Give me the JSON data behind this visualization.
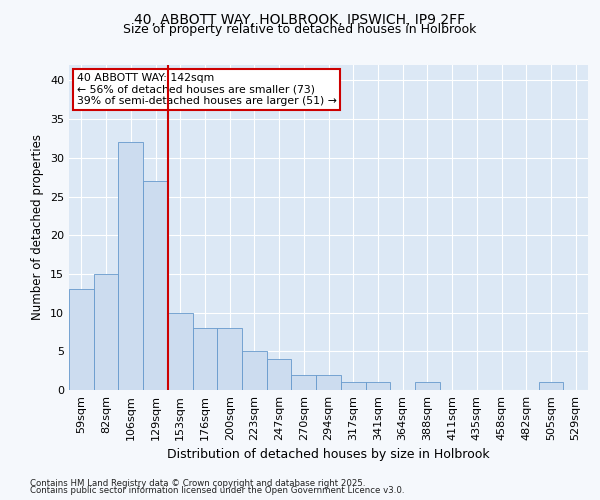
{
  "title1": "40, ABBOTT WAY, HOLBROOK, IPSWICH, IP9 2FF",
  "title2": "Size of property relative to detached houses in Holbrook",
  "xlabel": "Distribution of detached houses by size in Holbrook",
  "ylabel": "Number of detached properties",
  "categories": [
    "59sqm",
    "82sqm",
    "106sqm",
    "129sqm",
    "153sqm",
    "176sqm",
    "200sqm",
    "223sqm",
    "247sqm",
    "270sqm",
    "294sqm",
    "317sqm",
    "341sqm",
    "364sqm",
    "388sqm",
    "411sqm",
    "435sqm",
    "458sqm",
    "482sqm",
    "505sqm",
    "529sqm"
  ],
  "values": [
    13,
    15,
    32,
    27,
    10,
    8,
    8,
    5,
    4,
    2,
    2,
    1,
    1,
    0,
    1,
    0,
    0,
    0,
    0,
    1,
    0
  ],
  "bar_color": "#ccdcef",
  "bar_edge_color": "#6699cc",
  "vline_x": 3.5,
  "vline_color": "#cc0000",
  "annotation_line1": "40 ABBOTT WAY: 142sqm",
  "annotation_line2": "← 56% of detached houses are smaller (73)",
  "annotation_line3": "39% of semi-detached houses are larger (51) →",
  "annotation_box_color": "#cc0000",
  "ylim": [
    0,
    42
  ],
  "yticks": [
    0,
    5,
    10,
    15,
    20,
    25,
    30,
    35,
    40
  ],
  "plot_bg_color": "#dce8f5",
  "fig_bg_color": "#f5f8fc",
  "grid_color": "#ffffff",
  "footer1": "Contains HM Land Registry data © Crown copyright and database right 2025.",
  "footer2": "Contains public sector information licensed under the Open Government Licence v3.0."
}
